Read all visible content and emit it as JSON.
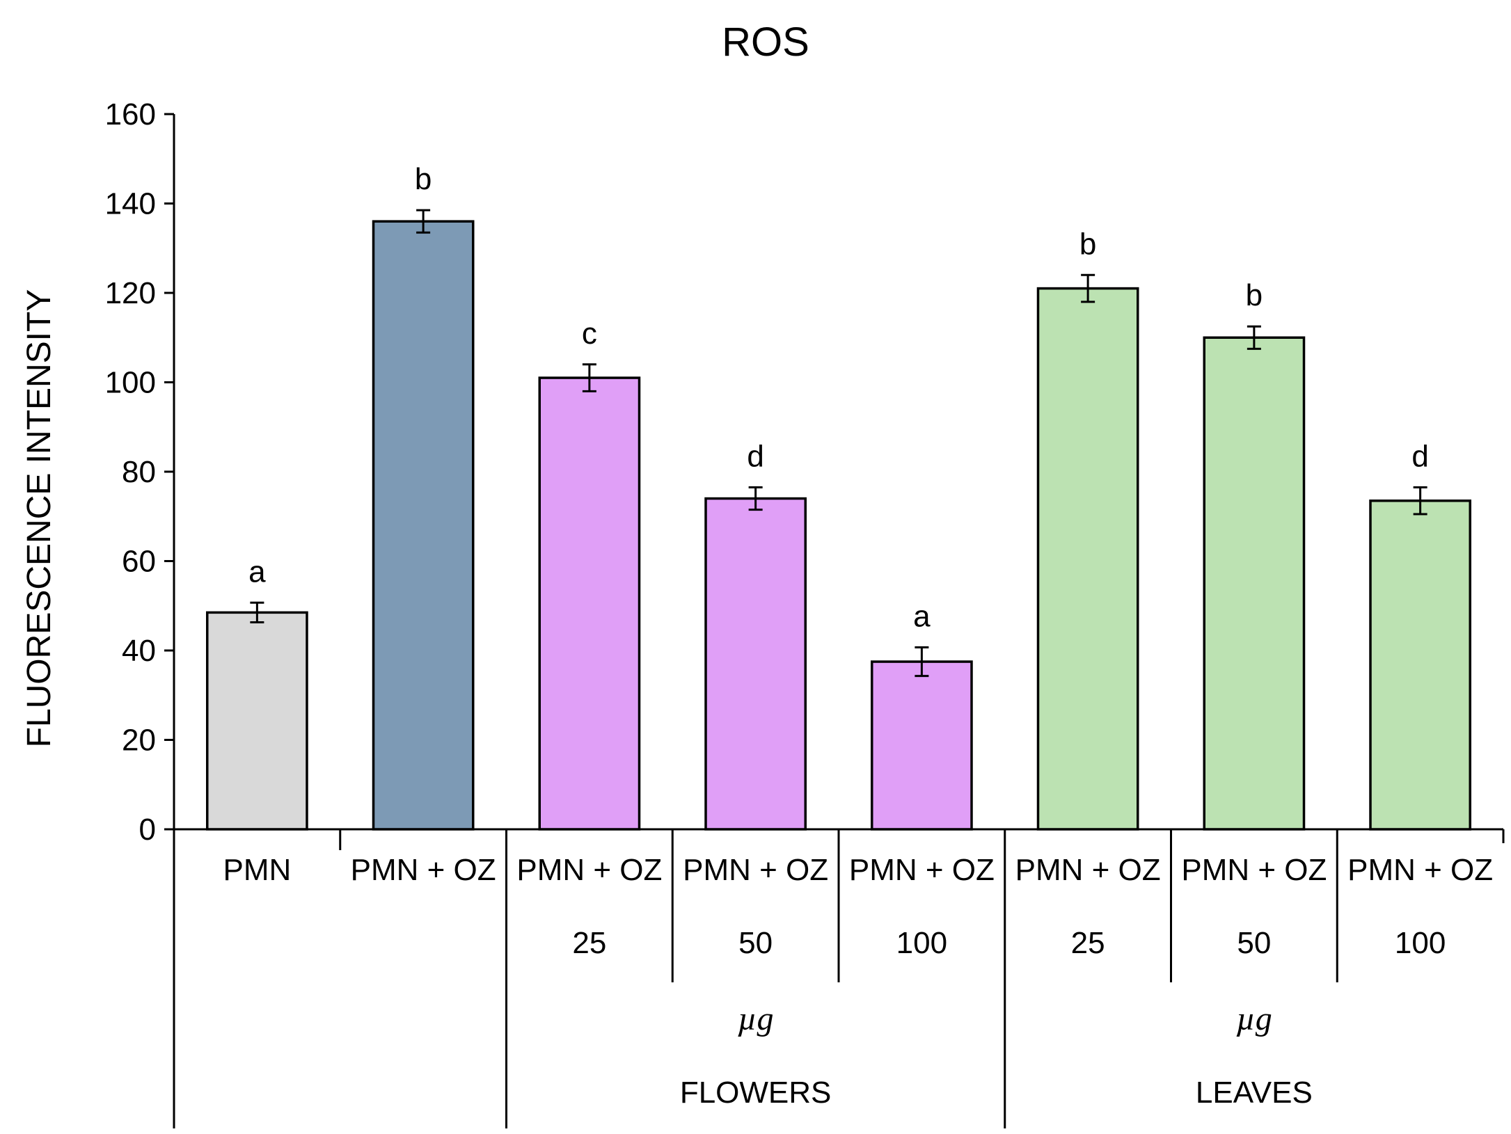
{
  "chart_data": {
    "type": "bar",
    "title": "ROS",
    "ylabel": "FLUORESCENCE INTENSITY",
    "xlabel": "",
    "ylim": [
      0,
      160
    ],
    "yticks": [
      0,
      20,
      40,
      60,
      80,
      100,
      120,
      140,
      160
    ],
    "grid": false,
    "bars": [
      {
        "label": "PMN",
        "dose": "",
        "value": 48.5,
        "error": 2.2,
        "sig": "a",
        "color": "#d9d9d9"
      },
      {
        "label": "PMN + OZ",
        "dose": "",
        "value": 136,
        "error": 2.5,
        "sig": "b",
        "color": "#7d9ab5"
      },
      {
        "label": "PMN + OZ",
        "dose": "25",
        "value": 101,
        "error": 3,
        "sig": "c",
        "color": "#e09ff7"
      },
      {
        "label": "PMN + OZ",
        "dose": "50",
        "value": 74,
        "error": 2.5,
        "sig": "d",
        "color": "#e09ff7"
      },
      {
        "label": "PMN + OZ",
        "dose": "100",
        "value": 37.5,
        "error": 3.2,
        "sig": "a",
        "color": "#e09ff7"
      },
      {
        "label": "PMN + OZ",
        "dose": "25",
        "value": 121,
        "error": 3,
        "sig": "b",
        "color": "#bce2b2"
      },
      {
        "label": "PMN + OZ",
        "dose": "50",
        "value": 110,
        "error": 2.5,
        "sig": "b",
        "color": "#bce2b2"
      },
      {
        "label": "PMN + OZ",
        "dose": "100",
        "value": 73.5,
        "error": 3,
        "sig": "d",
        "color": "#bce2b2"
      }
    ],
    "groups": [
      {
        "name": "FLOWERS",
        "unit": "µg",
        "start": 2,
        "end": 4
      },
      {
        "name": "LEAVES",
        "unit": "µg",
        "start": 5,
        "end": 7
      }
    ]
  }
}
